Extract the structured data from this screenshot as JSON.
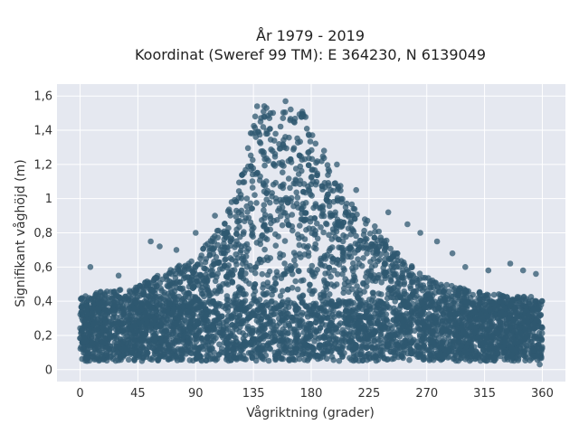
{
  "chart_data": {
    "type": "scatter",
    "title": "År 1979 - 2019",
    "subtitle": "Koordinat (Sweref 99 TM): E 364230, N 6139049",
    "xlabel": "Vågriktning (grader)",
    "ylabel": "Signifikant våghöjd (m)",
    "xlim": [
      -18,
      378
    ],
    "ylim": [
      -0.07,
      1.67
    ],
    "xticks": [
      0,
      45,
      90,
      135,
      180,
      225,
      270,
      315,
      360
    ],
    "xtick_labels": [
      "0",
      "45",
      "90",
      "135",
      "180",
      "225",
      "270",
      "315",
      "360"
    ],
    "yticks": [
      0,
      0.2,
      0.4,
      0.6,
      0.8,
      1.0,
      1.2,
      1.4,
      1.6
    ],
    "ytick_labels": [
      "0",
      "0,2",
      "0,4",
      "0,6",
      "0,8",
      "1",
      "1,2",
      "1,4",
      "1,6"
    ],
    "grid": true,
    "marker_color": "#2f5870",
    "background_color": "#e5e8f0",
    "envelope": {
      "x": [
        0,
        10,
        20,
        30,
        45,
        60,
        75,
        90,
        100,
        110,
        120,
        128,
        133,
        138,
        145,
        155,
        165,
        175,
        185,
        195,
        205,
        215,
        225,
        235,
        245,
        255,
        265,
        275,
        285,
        300,
        315,
        330,
        345,
        360
      ],
      "y_max": [
        0.42,
        0.45,
        0.46,
        0.47,
        0.49,
        0.55,
        0.6,
        0.66,
        0.75,
        0.86,
        1.0,
        1.2,
        1.45,
        1.55,
        1.56,
        1.55,
        1.55,
        1.5,
        1.3,
        1.18,
        1.05,
        0.95,
        0.88,
        0.8,
        0.7,
        0.63,
        0.57,
        0.52,
        0.5,
        0.47,
        0.45,
        0.44,
        0.43,
        0.42
      ],
      "y_min": 0.05
    },
    "outliers": [
      {
        "x": 8,
        "y": 0.6
      },
      {
        "x": 30,
        "y": 0.55
      },
      {
        "x": 55,
        "y": 0.75
      },
      {
        "x": 62,
        "y": 0.72
      },
      {
        "x": 75,
        "y": 0.7
      },
      {
        "x": 90,
        "y": 0.8
      },
      {
        "x": 105,
        "y": 0.9
      },
      {
        "x": 118,
        "y": 0.98
      },
      {
        "x": 160,
        "y": 1.57
      },
      {
        "x": 190,
        "y": 1.28
      },
      {
        "x": 200,
        "y": 1.2
      },
      {
        "x": 215,
        "y": 1.05
      },
      {
        "x": 240,
        "y": 0.92
      },
      {
        "x": 255,
        "y": 0.85
      },
      {
        "x": 265,
        "y": 0.8
      },
      {
        "x": 278,
        "y": 0.75
      },
      {
        "x": 290,
        "y": 0.68
      },
      {
        "x": 300,
        "y": 0.6
      },
      {
        "x": 318,
        "y": 0.58
      },
      {
        "x": 335,
        "y": 0.62
      },
      {
        "x": 345,
        "y": 0.58
      },
      {
        "x": 355,
        "y": 0.56
      },
      {
        "x": 185,
        "y": 0.08
      },
      {
        "x": 358,
        "y": 0.03
      }
    ]
  }
}
